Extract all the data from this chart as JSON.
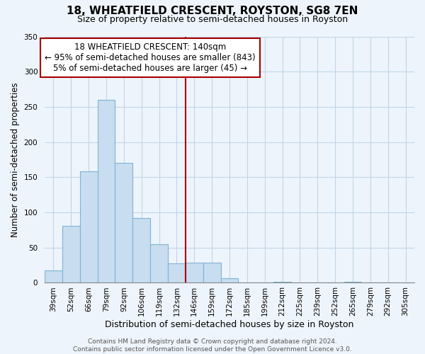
{
  "title": "18, WHEATFIELD CRESCENT, ROYSTON, SG8 7EN",
  "subtitle": "Size of property relative to semi-detached houses in Royston",
  "xlabel": "Distribution of semi-detached houses by size in Royston",
  "ylabel": "Number of semi-detached properties",
  "bar_labels": [
    "39sqm",
    "52sqm",
    "66sqm",
    "79sqm",
    "92sqm",
    "106sqm",
    "119sqm",
    "132sqm",
    "146sqm",
    "159sqm",
    "172sqm",
    "185sqm",
    "199sqm",
    "212sqm",
    "225sqm",
    "239sqm",
    "252sqm",
    "265sqm",
    "279sqm",
    "292sqm",
    "305sqm"
  ],
  "bar_values": [
    18,
    81,
    158,
    260,
    170,
    92,
    55,
    28,
    29,
    29,
    6,
    0,
    0,
    1,
    0,
    0,
    0,
    1,
    0,
    0,
    0
  ],
  "bar_color": "#c8ddf0",
  "bar_edge_color": "#7fb3d3",
  "vline_x_index": 8,
  "vline_color": "#aa0000",
  "ylim": [
    0,
    350
  ],
  "yticks": [
    0,
    50,
    100,
    150,
    200,
    250,
    300,
    350
  ],
  "annotation_line1": "18 WHEATFIELD CRESCENT: 140sqm",
  "annotation_line2": "← 95% of semi-detached houses are smaller (843)",
  "annotation_line3": "5% of semi-detached houses are larger (45) →",
  "annotation_box_color": "#ffffff",
  "annotation_box_edgecolor": "#aa0000",
  "bg_color": "#eef4fb",
  "grid_color": "#c0d5e8",
  "footer_text": "Contains HM Land Registry data © Crown copyright and database right 2024.\nContains public sector information licensed under the Open Government Licence v3.0.",
  "title_fontsize": 11,
  "subtitle_fontsize": 9,
  "ylabel_fontsize": 8.5,
  "xlabel_fontsize": 9,
  "tick_fontsize": 7.5,
  "annotation_fontsize": 8.5,
  "footer_fontsize": 6.5
}
